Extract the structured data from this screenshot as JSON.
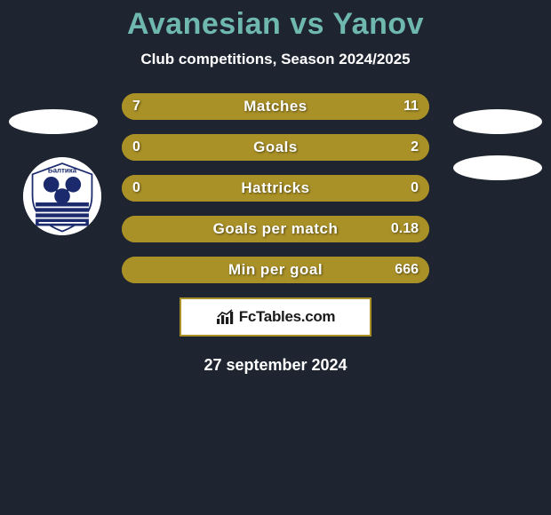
{
  "title": "Avanesian vs Yanov",
  "subtitle": "Club competitions, Season 2024/2025",
  "date": "27 september 2024",
  "footer_brand": "FcTables.com",
  "colors": {
    "background": "#1e2430",
    "title": "#6fb8b0",
    "text": "#ffffff",
    "bar_left": "#a99027",
    "bar_right": "#a99027",
    "bar_empty": "#8b7820",
    "footer_border": "#a99027",
    "footer_bg": "#ffffff"
  },
  "fonts": {
    "title_size": 34,
    "subtitle_size": 17,
    "bar_label_size": 17,
    "bar_value_size": 16,
    "date_size": 18
  },
  "bars": [
    {
      "label": "Matches",
      "left": "7",
      "right": "11",
      "left_pct": 38.9,
      "right_pct": 61.1
    },
    {
      "label": "Goals",
      "left": "0",
      "right": "2",
      "left_pct": 4.0,
      "right_pct": 96.0
    },
    {
      "label": "Hattricks",
      "left": "0",
      "right": "0",
      "left_pct": 50.0,
      "right_pct": 50.0
    },
    {
      "label": "Goals per match",
      "left": "",
      "right": "0.18",
      "left_pct": 4.0,
      "right_pct": 96.0
    },
    {
      "label": "Min per goal",
      "left": "",
      "right": "666",
      "left_pct": 4.0,
      "right_pct": 96.0
    }
  ],
  "club_badge": {
    "name": "Балтика",
    "primary": "#1a2a6c",
    "secondary": "#ffffff"
  }
}
